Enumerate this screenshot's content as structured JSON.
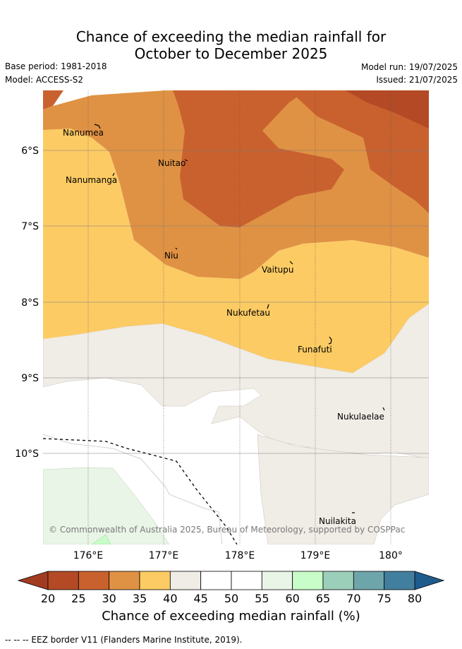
{
  "header": {
    "title_line1": "Chance of exceeding the median rainfall for",
    "title_line2": "October to December 2025",
    "base_period": "Base period: 1981-2018",
    "model": "Model: ACCESS-S2",
    "model_run": "Model run: 19/07/2025",
    "issued": "Issued: 21/07/2025"
  },
  "map": {
    "lat_labels": [
      "6°S",
      "7°S",
      "8°S",
      "9°S",
      "10°S"
    ],
    "lon_labels": [
      "176°E",
      "177°E",
      "178°E",
      "179°E",
      "180°"
    ],
    "islands": [
      {
        "name": "Nanumea"
      },
      {
        "name": "Nuitao"
      },
      {
        "name": "Nanumanga"
      },
      {
        "name": "Niu"
      },
      {
        "name": "Vaitupu"
      },
      {
        "name": "Nukufetau"
      },
      {
        "name": "Funafuti"
      },
      {
        "name": "Nukulaelae"
      },
      {
        "name": "Nuilakita"
      }
    ],
    "copyright": "© Commonwealth of Australia 2025, Bureau of Meteorology, supported by COSPPac"
  },
  "colorbar": {
    "ticks": [
      "20",
      "25",
      "30",
      "35",
      "40",
      "45",
      "50",
      "55",
      "60",
      "65",
      "70",
      "75",
      "80"
    ],
    "colors": [
      "#b34a25",
      "#c9612f",
      "#df9244",
      "#fccb64",
      "#f0ece6",
      "#ffffff",
      "#ffffff",
      "#e9f5e6",
      "#c8fcc9",
      "#9ccfba",
      "#6ea5aa",
      "#427f9f"
    ],
    "under_color": "#a13c20",
    "over_color": "#1f5b8c",
    "title": "Chance of exceeding median rainfall (%)"
  },
  "footnote": "-- -- -- EEZ border V11 (Flanders Marine Institute, 2019)."
}
